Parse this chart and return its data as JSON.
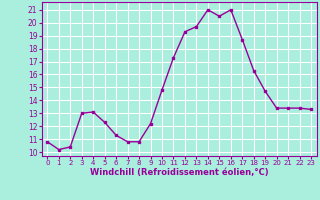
{
  "x": [
    0,
    1,
    2,
    3,
    4,
    5,
    6,
    7,
    8,
    9,
    10,
    11,
    12,
    13,
    14,
    15,
    16,
    17,
    18,
    19,
    20,
    21,
    22,
    23
  ],
  "y": [
    10.8,
    10.2,
    10.4,
    13.0,
    13.1,
    12.3,
    11.3,
    10.8,
    10.8,
    12.2,
    14.8,
    17.3,
    19.3,
    19.7,
    21.0,
    20.5,
    21.0,
    18.7,
    16.3,
    14.7,
    13.4,
    13.4,
    13.4,
    13.3
  ],
  "line_color": "#990099",
  "marker": "s",
  "marker_size": 2,
  "bg_color": "#aaeedd",
  "grid_color": "#ffffff",
  "xlabel": "Windchill (Refroidissement éolien,°C)",
  "xlabel_color": "#990099",
  "tick_color": "#990099",
  "ylim": [
    9.7,
    21.6
  ],
  "xlim": [
    -0.5,
    23.5
  ],
  "yticks": [
    10,
    11,
    12,
    13,
    14,
    15,
    16,
    17,
    18,
    19,
    20,
    21
  ],
  "xticks": [
    0,
    1,
    2,
    3,
    4,
    5,
    6,
    7,
    8,
    9,
    10,
    11,
    12,
    13,
    14,
    15,
    16,
    17,
    18,
    19,
    20,
    21,
    22,
    23
  ]
}
